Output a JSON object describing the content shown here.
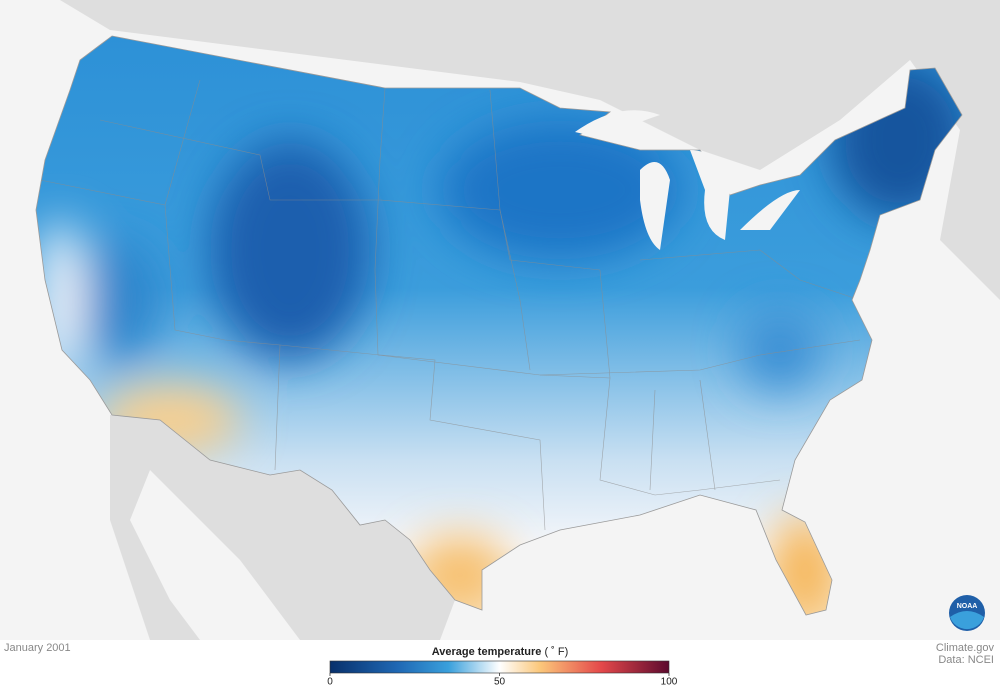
{
  "map": {
    "date": "January 2001"
  },
  "legend": {
    "title": "Average temperature",
    "unit": "( ˚ F)",
    "range": [
      0,
      100
    ],
    "ticks": [
      0,
      50,
      100
    ]
  },
  "credits": {
    "site": "Climate.gov",
    "source": "Data: NCEI"
  },
  "logo": "NOAA"
}
